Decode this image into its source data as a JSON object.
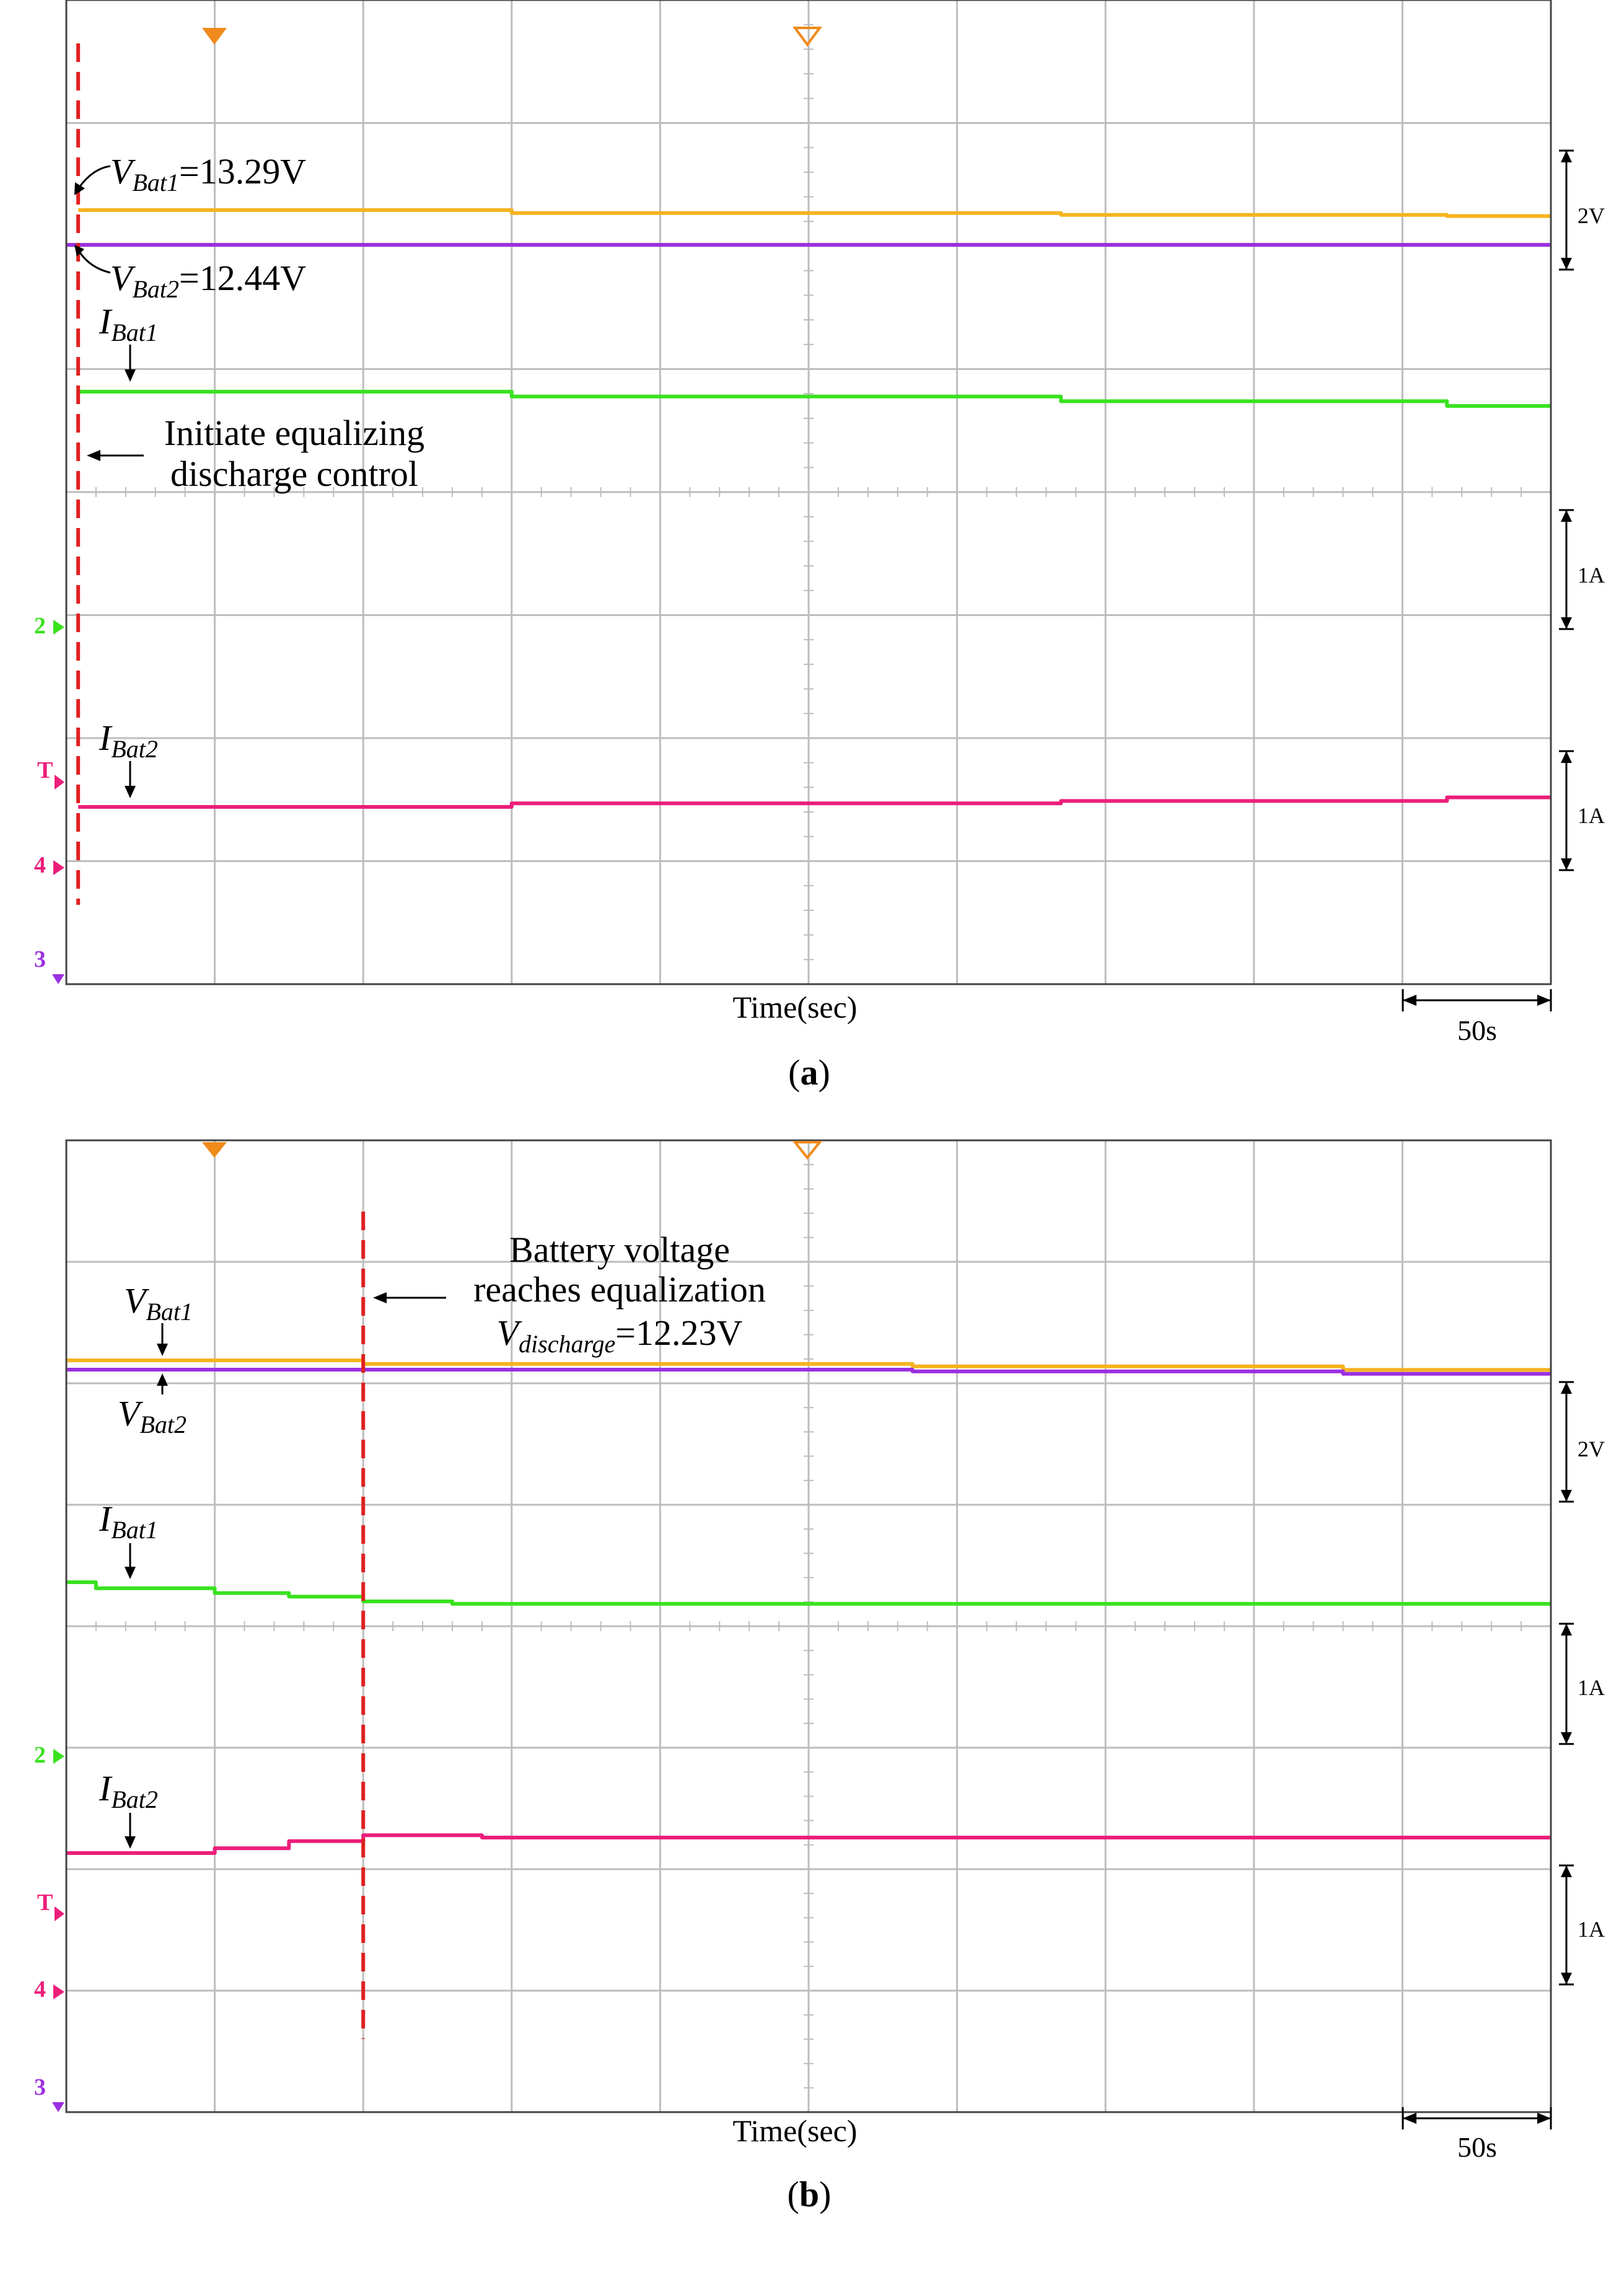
{
  "panels": [
    {
      "label": "a",
      "xlabel": "Time(sec)",
      "time_scale": "50s",
      "vertical_scales": [
        "2V",
        "1A",
        "1A"
      ],
      "channel_markers": [
        "2",
        "T",
        "4",
        "3"
      ],
      "annotations": {
        "vbat1": {
          "sym": "V",
          "sub": "Bat1",
          "rest": "=13.29V"
        },
        "vbat2": {
          "sym": "V",
          "sub": "Bat2",
          "rest": "=12.44V"
        },
        "ibat1": {
          "sym": "I",
          "sub": "Bat1"
        },
        "ibat2": {
          "sym": "I",
          "sub": "Bat2"
        },
        "event_lines": [
          "Initiate equalizing",
          "discharge control"
        ]
      }
    },
    {
      "label": "b",
      "xlabel": "Time(sec)",
      "time_scale": "50s",
      "vertical_scales": [
        "2V",
        "1A",
        "1A"
      ],
      "channel_markers": [
        "2",
        "T",
        "4",
        "3"
      ],
      "annotations": {
        "vbat1": {
          "sym": "V",
          "sub": "Bat1",
          "rest": ""
        },
        "vbat2": {
          "sym": "V",
          "sub": "Bat2",
          "rest": ""
        },
        "ibat1": {
          "sym": "I",
          "sub": "Bat1"
        },
        "ibat2": {
          "sym": "I",
          "sub": "Bat2"
        },
        "event_lines": [
          "Battery voltage",
          "reaches equalization"
        ],
        "vdis": {
          "sym": "V",
          "sub": "discharge",
          "rest": "=12.23V"
        }
      }
    }
  ],
  "colors": {
    "vbat1": "#f5b31f",
    "vbat2": "#9b30e0",
    "ibat1": "#39e21f",
    "ibat2": "#ec1e7a",
    "event": "#e02020",
    "grid": "#bdbdbd",
    "trigger": "#f08a1a"
  },
  "chart_data": [
    {
      "type": "line",
      "title": "(a)",
      "xlabel": "Time(sec)",
      "x_unit": "s",
      "x_range": [
        0,
        500
      ],
      "x_per_division": 50,
      "event_time": 4,
      "series": [
        {
          "name": "VBat1",
          "unit": "V",
          "per_division": 2,
          "x": [
            4,
            150,
            150,
            335,
            335,
            465,
            465,
            500
          ],
          "values": [
            13.29,
            13.29,
            13.24,
            13.24,
            13.21,
            13.21,
            13.19,
            13.19
          ]
        },
        {
          "name": "VBat2",
          "unit": "V",
          "per_division": 2,
          "x": [
            0,
            500
          ],
          "values": [
            12.44,
            12.44
          ]
        },
        {
          "name": "IBat1",
          "unit": "A",
          "per_division": 1,
          "x": [
            4,
            150,
            150,
            335,
            335,
            465,
            465,
            500
          ],
          "values": [
            2.6,
            2.6,
            2.56,
            2.56,
            2.52,
            2.52,
            2.48,
            2.48
          ]
        },
        {
          "name": "IBat2",
          "unit": "A",
          "per_division": 1,
          "x": [
            4,
            150,
            150,
            335,
            335,
            465,
            465,
            500
          ],
          "values": [
            0.48,
            0.48,
            0.51,
            0.51,
            0.53,
            0.53,
            0.56,
            0.56
          ]
        }
      ]
    },
    {
      "type": "line",
      "title": "(b)",
      "xlabel": "Time(sec)",
      "x_unit": "s",
      "x_range": [
        0,
        500
      ],
      "x_per_division": 50,
      "event_time": 100,
      "series": [
        {
          "name": "VBat1",
          "unit": "V",
          "per_division": 2,
          "x": [
            0,
            100,
            100,
            285,
            285,
            430,
            430,
            500
          ],
          "values": [
            12.39,
            12.39,
            12.33,
            12.33,
            12.29,
            12.29,
            12.23,
            12.23
          ]
        },
        {
          "name": "VBat2",
          "unit": "V",
          "per_division": 2,
          "x": [
            0,
            100,
            100,
            285,
            285,
            430,
            430,
            500
          ],
          "values": [
            12.23,
            12.23,
            12.23,
            12.23,
            12.2,
            12.2,
            12.16,
            12.16
          ]
        },
        {
          "name": "IBat1",
          "unit": "A",
          "per_division": 1,
          "x": [
            0,
            10,
            10,
            50,
            50,
            75,
            75,
            100,
            100,
            130,
            130,
            500
          ],
          "values": [
            2.38,
            2.38,
            2.33,
            2.33,
            2.29,
            2.29,
            2.26,
            2.26,
            2.22,
            2.22,
            2.2,
            2.2
          ]
        },
        {
          "name": "IBat2",
          "unit": "A",
          "per_division": 1,
          "x": [
            0,
            50,
            50,
            75,
            75,
            100,
            100,
            140,
            140,
            500
          ],
          "values": [
            0.09,
            0.09,
            0.13,
            0.13,
            0.19,
            0.19,
            0.24,
            0.24,
            0.22,
            0.22
          ]
        }
      ]
    }
  ]
}
